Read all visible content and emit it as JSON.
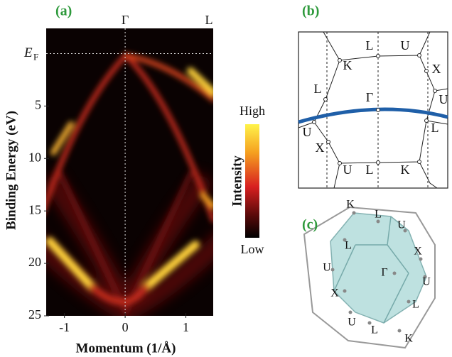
{
  "chart_data": {
    "type": "heatmap",
    "panel_label": "(a)",
    "xlabel": "Momentum (1/Å)",
    "ylabel": "Binding Energy (eV)",
    "xlim": [
      -1.3,
      1.45
    ],
    "ylim": [
      -2.4,
      25
    ],
    "y_inverted": true,
    "xticks": [
      -1,
      0,
      1
    ],
    "yticks": [
      5,
      10,
      15,
      20,
      25
    ],
    "top_ticks": [
      {
        "value": 0,
        "label": "Γ"
      },
      {
        "value": 1.45,
        "label": "L"
      }
    ],
    "fermi_level": {
      "value": 0,
      "label": "E",
      "subscript": "F"
    },
    "colorbar": {
      "high": "High",
      "low": "Low",
      "label": "Intensity"
    }
  },
  "panel_b": {
    "panel_label": "(b)",
    "points": [
      "L",
      "U",
      "K",
      "X",
      "L",
      "Γ",
      "U",
      "U",
      "L",
      "X",
      "L",
      "U",
      "K"
    ]
  },
  "panel_c": {
    "panel_label": "(c)",
    "points": [
      "K",
      "L",
      "U",
      "L",
      "X",
      "U",
      "Γ",
      "U",
      "X",
      "L",
      "U",
      "L",
      "K"
    ]
  }
}
